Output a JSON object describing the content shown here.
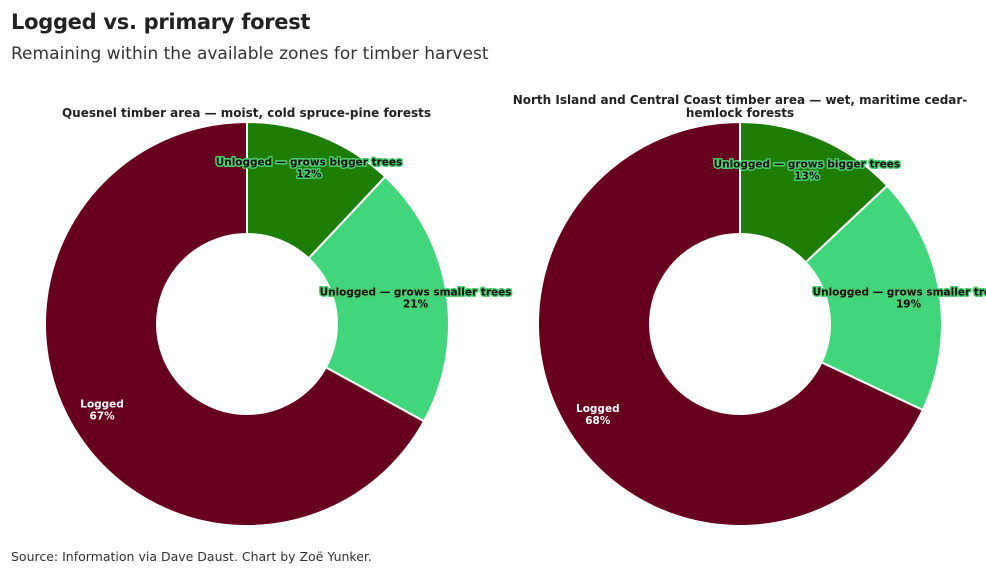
{
  "header": {
    "title": "Logged vs. primary forest",
    "subtitle": "Remaining within the available zones for timber harvest"
  },
  "footer": {
    "source": "Source: Information via Dave Daust. Chart by Zoë Yunker."
  },
  "colors": {
    "logged": "#67001e",
    "bigger": "#1e7d04",
    "smaller": "#42d67c",
    "label_halo_green": "#4fcb72"
  },
  "chart_data": [
    {
      "type": "pie",
      "donut": true,
      "title": "Quesnel timber area — moist, cold spruce-pine forests",
      "slices": [
        {
          "label": "Unlogged — grows bigger trees",
          "value": 12,
          "display": "12%",
          "color": "#1e7d04"
        },
        {
          "label": "Unlogged — grows smaller trees",
          "value": 21,
          "display": "21%",
          "color": "#42d67c"
        },
        {
          "label": "Logged",
          "value": 67,
          "display": "67%",
          "color": "#67001e"
        }
      ]
    },
    {
      "type": "pie",
      "donut": true,
      "title": "North Island and Central Coast timber area — wet, maritime cedar-hemlock forests",
      "slices": [
        {
          "label": "Unlogged — grows bigger trees",
          "value": 13,
          "display": "13%",
          "color": "#1e7d04"
        },
        {
          "label": "Unlogged — grows smaller trees",
          "value": 19,
          "display": "19%",
          "color": "#42d67c"
        },
        {
          "label": "Logged",
          "value": 68,
          "display": "68%",
          "color": "#67001e"
        }
      ]
    }
  ]
}
